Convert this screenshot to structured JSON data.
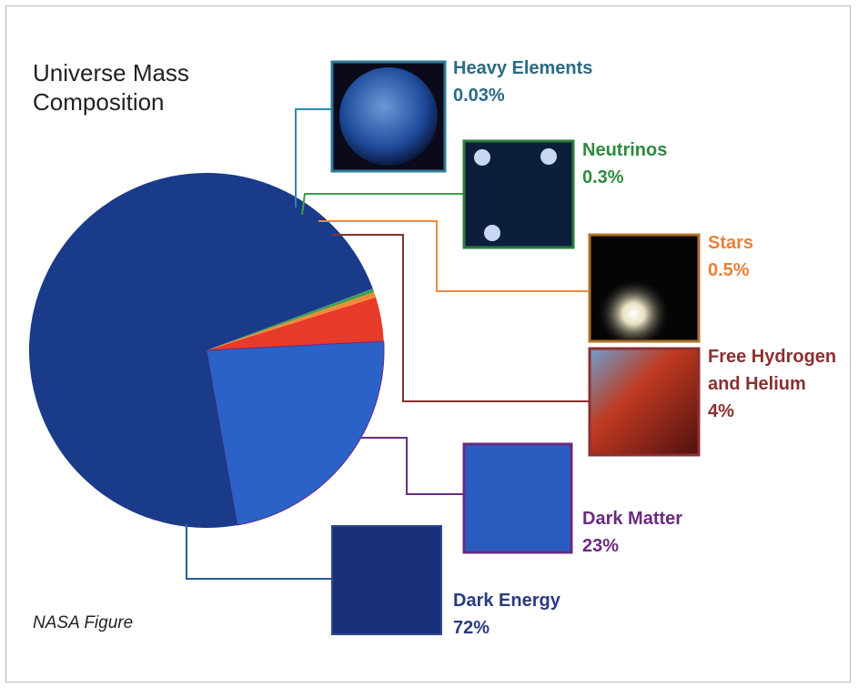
{
  "chart_data": {
    "type": "pie",
    "title": "Universe Mass Composition",
    "footer": "NASA Figure",
    "categories": [
      "Heavy Elements",
      "Neutrinos",
      "Stars",
      "Free Hydrogen and Helium",
      "Dark Matter",
      "Dark Energy"
    ],
    "values": [
      0.03,
      0.3,
      0.5,
      4,
      23,
      72
    ],
    "value_labels": [
      "0.03%",
      "0.3%",
      "0.5%",
      "4%",
      "23%",
      "72%"
    ],
    "colors": [
      "#2a8aa8",
      "#3aa04a",
      "#f08a3a",
      "#e83a2a",
      "#2a62c8",
      "#1a3a8a"
    ],
    "label_colors": [
      "#2b6a85",
      "#2e8a3e",
      "#e8803a",
      "#8a3030",
      "#6a2a80",
      "#2a3a80"
    ]
  }
}
